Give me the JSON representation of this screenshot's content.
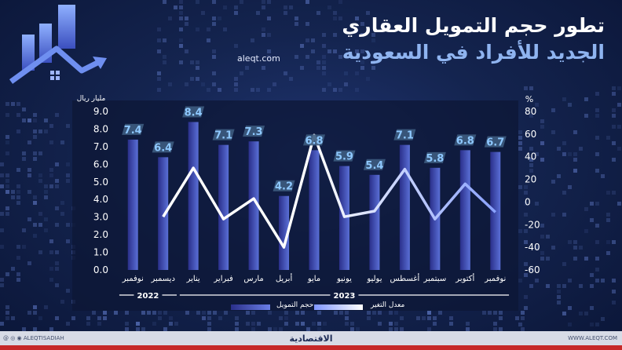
{
  "title": {
    "line1": "تطور حجم التمويل العقاري",
    "line2": "الجديد للأفراد في السعودية"
  },
  "source": "aleqt.com",
  "colors": {
    "bar": "#5a6fd6",
    "bar_dark": "#2a2f8a",
    "line": "#ffffff",
    "label_bg": "#3d5c80",
    "label_text": "#8ec8ff",
    "title_sub": "#8fb4f0"
  },
  "chart_data": {
    "type": "bar",
    "categories": [
      "نوفمبر",
      "ديسمبر",
      "يناير",
      "فبراير",
      "مارس",
      "أبريل",
      "مايو",
      "يونيو",
      "يوليو",
      "أغسطس",
      "سبتمبر",
      "أكتوبر",
      "نوفمبر"
    ],
    "series": [
      {
        "name": "حجم التمويل",
        "type": "bar",
        "axis": "left",
        "values": [
          7.4,
          6.4,
          8.4,
          7.1,
          7.3,
          4.2,
          6.8,
          5.9,
          5.4,
          7.1,
          5.8,
          6.8,
          6.7
        ]
      },
      {
        "name": "معدل التغير",
        "type": "line",
        "axis": "right",
        "values": [
          null,
          -13,
          30,
          -15,
          3,
          -40,
          59,
          -13,
          -8,
          29,
          -15,
          16,
          -9
        ]
      }
    ],
    "bar_labels": [
      "7.4",
      "6.4",
      "8.4",
      "7.1",
      "7.3",
      "4.2",
      "6.8",
      "5.9",
      "5.4",
      "7.1",
      "5.8",
      "6.8",
      "6.7"
    ],
    "left_axis": {
      "label": "مليار ريال",
      "ylim": [
        0,
        9
      ],
      "ticks": [
        "0.0",
        "1.0",
        "2.0",
        "3.0",
        "4.0",
        "5.0",
        "6.0",
        "7.0",
        "8.0",
        "9.0"
      ]
    },
    "right_axis": {
      "label": "%",
      "ylim": [
        -60,
        80
      ],
      "ticks": [
        "-60",
        "-40",
        "-20",
        "0",
        "20",
        "40",
        "60",
        "80"
      ]
    },
    "year_groups": [
      {
        "label": "2022",
        "from": 0,
        "to": 1
      },
      {
        "label": "2023",
        "from": 2,
        "to": 12
      }
    ],
    "legend": [
      "حجم التمويل",
      "معدل التغير"
    ],
    "grid": false
  },
  "footer": {
    "brand": "الاقتصادية",
    "handle_left": "@ ◎ ◉ ALEQTISADIAH",
    "handle_right": "WWW.ALEQT.COM"
  }
}
